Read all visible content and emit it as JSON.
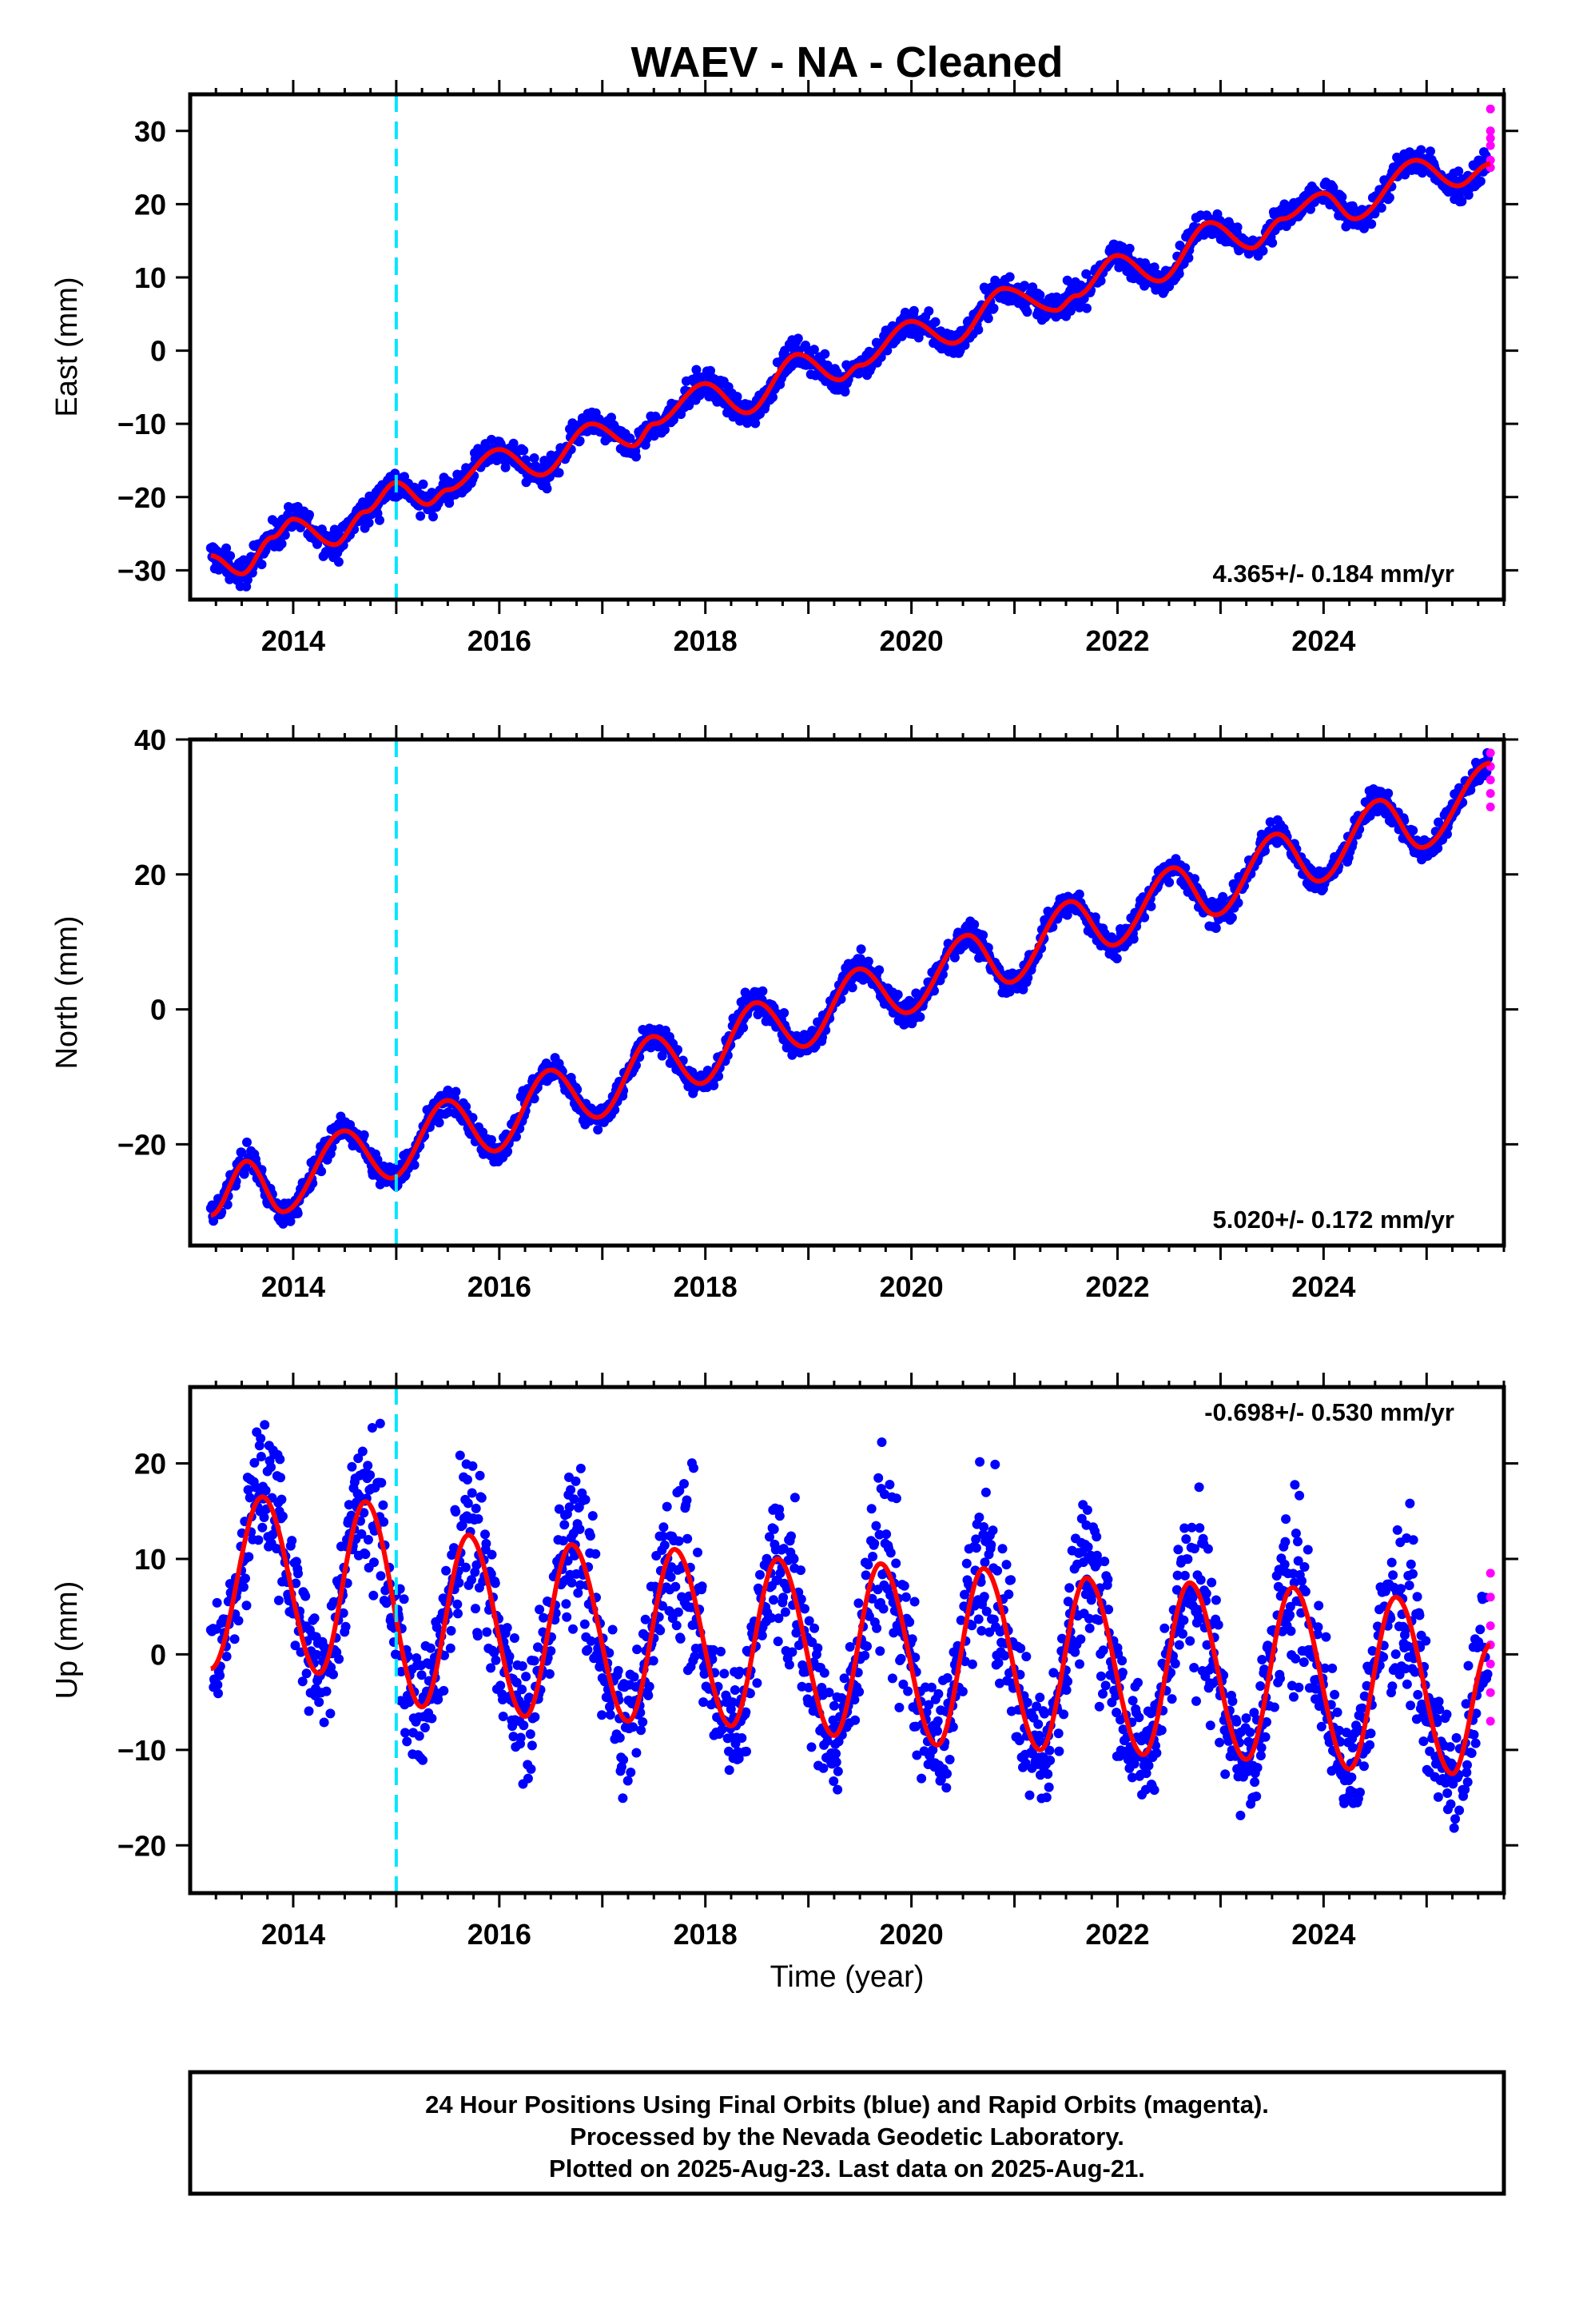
{
  "title": "WAEV  - NA - Cleaned",
  "colors": {
    "final": "#0000ff",
    "rapid": "#ff00ff",
    "model": "#ff0000",
    "event": "#00e5ff"
  },
  "xlabel": "Time (year)",
  "xlim": [
    2013.0,
    2025.75
  ],
  "xticks": [
    "2014",
    "2016",
    "2018",
    "2020",
    "2022",
    "2024"
  ],
  "event_line_year": 2015.0,
  "footer": {
    "line1": "24 Hour Positions Using Final Orbits (blue) and Rapid Orbits (magenta).",
    "line2": "Processed by the Nevada Geodetic Laboratory.",
    "line3": "Plotted on 2025-Aug-23. Last data on 2025-Aug-21."
  },
  "chart_data": [
    {
      "type": "scatter",
      "component": "east",
      "ylabel": "East (mm)",
      "ylim": [
        -34,
        35
      ],
      "yticks": [
        -30,
        -20,
        -10,
        0,
        10,
        20,
        30
      ],
      "rate_label": "4.365+/- 0.184 mm/yr",
      "rate_position": "bottom-right",
      "x_range": [
        2013.2,
        2025.62
      ],
      "model": {
        "x": [
          2013.2,
          2013.5,
          2013.8,
          2014.0,
          2014.4,
          2014.7,
          2015.0,
          2015.3,
          2015.5,
          2016.0,
          2016.4,
          2016.9,
          2017.3,
          2017.5,
          2018.0,
          2018.4,
          2018.9,
          2019.3,
          2019.5,
          2020.0,
          2020.4,
          2020.9,
          2021.4,
          2021.6,
          2022.0,
          2022.4,
          2022.9,
          2023.3,
          2023.6,
          2024.0,
          2024.3,
          2024.9,
          2025.3,
          2025.62
        ],
        "y": [
          -28.0,
          -30.5,
          -25.5,
          -23.0,
          -26.5,
          -22.0,
          -18.0,
          -21.0,
          -19.0,
          -13.5,
          -17.0,
          -10.0,
          -13.0,
          -10.0,
          -4.5,
          -8.5,
          -0.5,
          -4.0,
          -2.0,
          4.0,
          1.0,
          8.5,
          5.5,
          7.5,
          13.0,
          9.5,
          17.5,
          14.0,
          18.0,
          21.5,
          18.0,
          26.0,
          22.5,
          25.5
        ]
      },
      "rapid": {
        "x": 2025.62,
        "y": [
          25,
          26,
          28,
          29,
          30,
          33
        ]
      }
    },
    {
      "type": "scatter",
      "component": "north",
      "ylabel": "North (mm)",
      "ylim": [
        -35,
        40
      ],
      "yticks": [
        -20,
        0,
        20,
        40
      ],
      "rate_label": "5.020+/- 0.172 mm/yr",
      "rate_position": "bottom-right",
      "x_range": [
        2013.2,
        2025.62
      ],
      "model": {
        "x": [
          2013.2,
          2013.55,
          2013.9,
          2014.5,
          2014.95,
          2015.5,
          2015.95,
          2016.5,
          2016.95,
          2017.5,
          2017.95,
          2018.5,
          2018.95,
          2019.5,
          2019.95,
          2020.55,
          2020.95,
          2021.55,
          2021.95,
          2022.55,
          2022.95,
          2023.55,
          2023.95,
          2024.55,
          2024.95,
          2025.62
        ],
        "y": [
          -30.5,
          -22.5,
          -30.0,
          -18.0,
          -25.0,
          -13.5,
          -21.0,
          -9.0,
          -16.0,
          -4.0,
          -11.0,
          1.0,
          -5.5,
          6.0,
          -0.5,
          11.0,
          4.0,
          16.0,
          9.5,
          21.0,
          14.0,
          26.0,
          19.0,
          31.0,
          24.0,
          36.5
        ]
      },
      "rapid": {
        "x": 2025.62,
        "y": [
          30,
          32,
          34,
          36,
          38
        ]
      }
    },
    {
      "type": "scatter",
      "component": "up",
      "ylabel": "Up (mm)",
      "ylim": [
        -25,
        28
      ],
      "yticks": [
        -20,
        -10,
        0,
        10,
        20
      ],
      "rate_label": "-0.698+/- 0.530 mm/yr",
      "rate_position": "top-right",
      "x_range": [
        2013.2,
        2025.62
      ],
      "model": {
        "x": [
          2013.2,
          2013.7,
          2014.25,
          2014.7,
          2015.25,
          2015.7,
          2016.25,
          2016.7,
          2017.25,
          2017.7,
          2018.25,
          2018.7,
          2019.25,
          2019.7,
          2020.25,
          2020.7,
          2021.25,
          2021.7,
          2022.25,
          2022.7,
          2023.25,
          2023.7,
          2024.25,
          2024.7,
          2025.25,
          2025.62
        ],
        "y": [
          -1.5,
          16.5,
          -2.0,
          16.0,
          -5.5,
          12.5,
          -6.5,
          11.5,
          -7.0,
          11.0,
          -7.5,
          10.0,
          -8.5,
          9.5,
          -9.5,
          9.0,
          -10.0,
          8.0,
          -10.5,
          7.5,
          -11.0,
          7.0,
          -12.0,
          6.0,
          -12.5,
          1.0
        ]
      },
      "rapid": {
        "x": 2025.62,
        "y": [
          -7,
          -4,
          -1,
          1,
          3,
          6,
          8.5
        ]
      }
    }
  ]
}
